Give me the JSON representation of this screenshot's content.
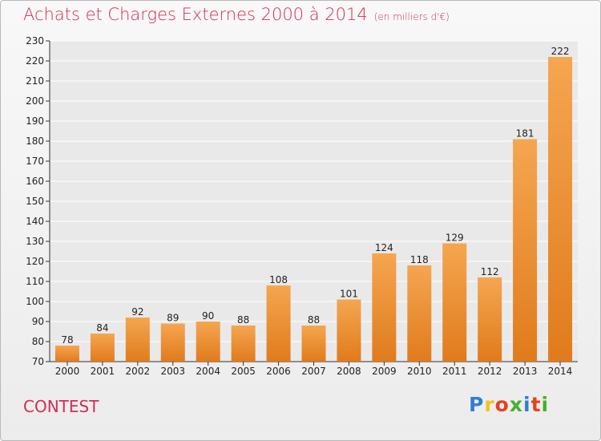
{
  "header": {
    "title": "Achats et Charges Externes 2000 à 2014",
    "subtitle": "(en milliers d'€)"
  },
  "footer": {
    "town": "CONTEST",
    "logo_text": "Proxiti",
    "logo_colors": [
      "#2f7fd3",
      "#f0c419",
      "#e2441f",
      "#47b02d",
      "#2f7fd3",
      "#e2441f",
      "#47b02d"
    ]
  },
  "colors": {
    "title": "#d52c55",
    "bar_light": "#f5a650",
    "bar_dark": "#e07b1c",
    "grid": "#ffffff"
  },
  "chart_data": {
    "type": "bar",
    "categories": [
      "2000",
      "2001",
      "2002",
      "2003",
      "2004",
      "2005",
      "2006",
      "2007",
      "2008",
      "2009",
      "2010",
      "2011",
      "2012",
      "2013",
      "2014"
    ],
    "values": [
      78,
      84,
      92,
      89,
      90,
      88,
      108,
      88,
      101,
      124,
      118,
      129,
      112,
      181,
      222
    ],
    "data_labels": [
      "78",
      "84",
      "92",
      "89",
      "90",
      "88",
      "108",
      "88",
      "101",
      "124",
      "118",
      "129",
      "112",
      "181",
      "222"
    ],
    "ylim": [
      70,
      230
    ],
    "yticks": [
      70,
      80,
      90,
      100,
      110,
      120,
      130,
      140,
      150,
      160,
      170,
      180,
      190,
      200,
      210,
      220,
      230
    ],
    "grid": true,
    "xlabel": "",
    "ylabel": ""
  }
}
